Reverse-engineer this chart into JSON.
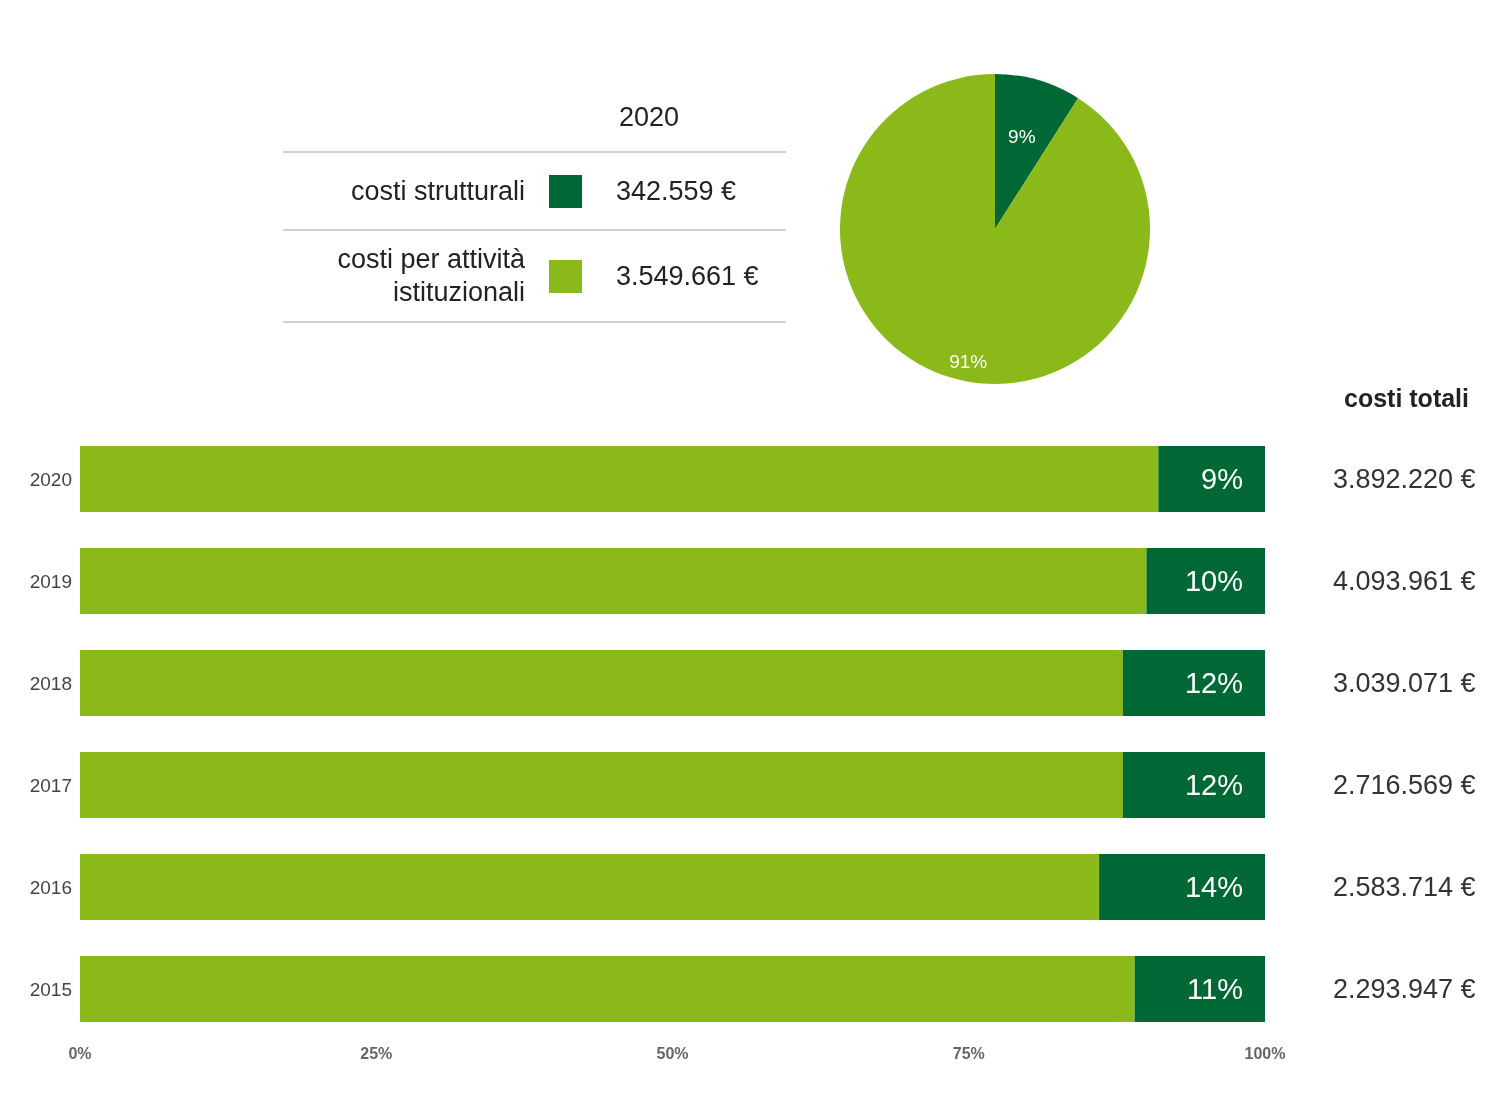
{
  "chart_data": [
    {
      "type": "pie",
      "title": "2020",
      "categories": [
        "costi strutturali",
        "costi per attività istituzionali"
      ],
      "values": [
        9,
        91
      ],
      "colors": [
        "#006834",
        "#8ab919"
      ],
      "value_labels": [
        "9%",
        "91%"
      ],
      "legend": "left",
      "annotations": [
        "342.559 €",
        "3.549.661 €"
      ]
    },
    {
      "type": "bar",
      "orientation": "horizontal",
      "stacked": true,
      "categories": [
        "2020",
        "2019",
        "2018",
        "2017",
        "2016",
        "2015"
      ],
      "series": [
        {
          "color": "#8ab919",
          "values": [
            91,
            90,
            88,
            88,
            86,
            89
          ]
        },
        {
          "color": "#006834",
          "values": [
            9,
            10,
            12,
            12,
            14,
            11
          ],
          "value_labels": [
            "9%",
            "10%",
            "12%",
            "12%",
            "14%",
            "11%"
          ]
        }
      ],
      "xlim": [
        0,
        100
      ],
      "xticks": [
        {
          "value": 0,
          "label": "0%"
        },
        {
          "value": 25,
          "label": "25%"
        },
        {
          "value": 50,
          "label": "50%"
        },
        {
          "value": 75,
          "label": "75%"
        },
        {
          "value": 100,
          "label": "100%"
        }
      ],
      "annotations": [
        "costi totali",
        "3.892.220 €",
        "4.093.961 €",
        "3.039.071 €",
        "2.716.569 €",
        "2.583.714 €",
        "2.293.947 €"
      ]
    }
  ]
}
